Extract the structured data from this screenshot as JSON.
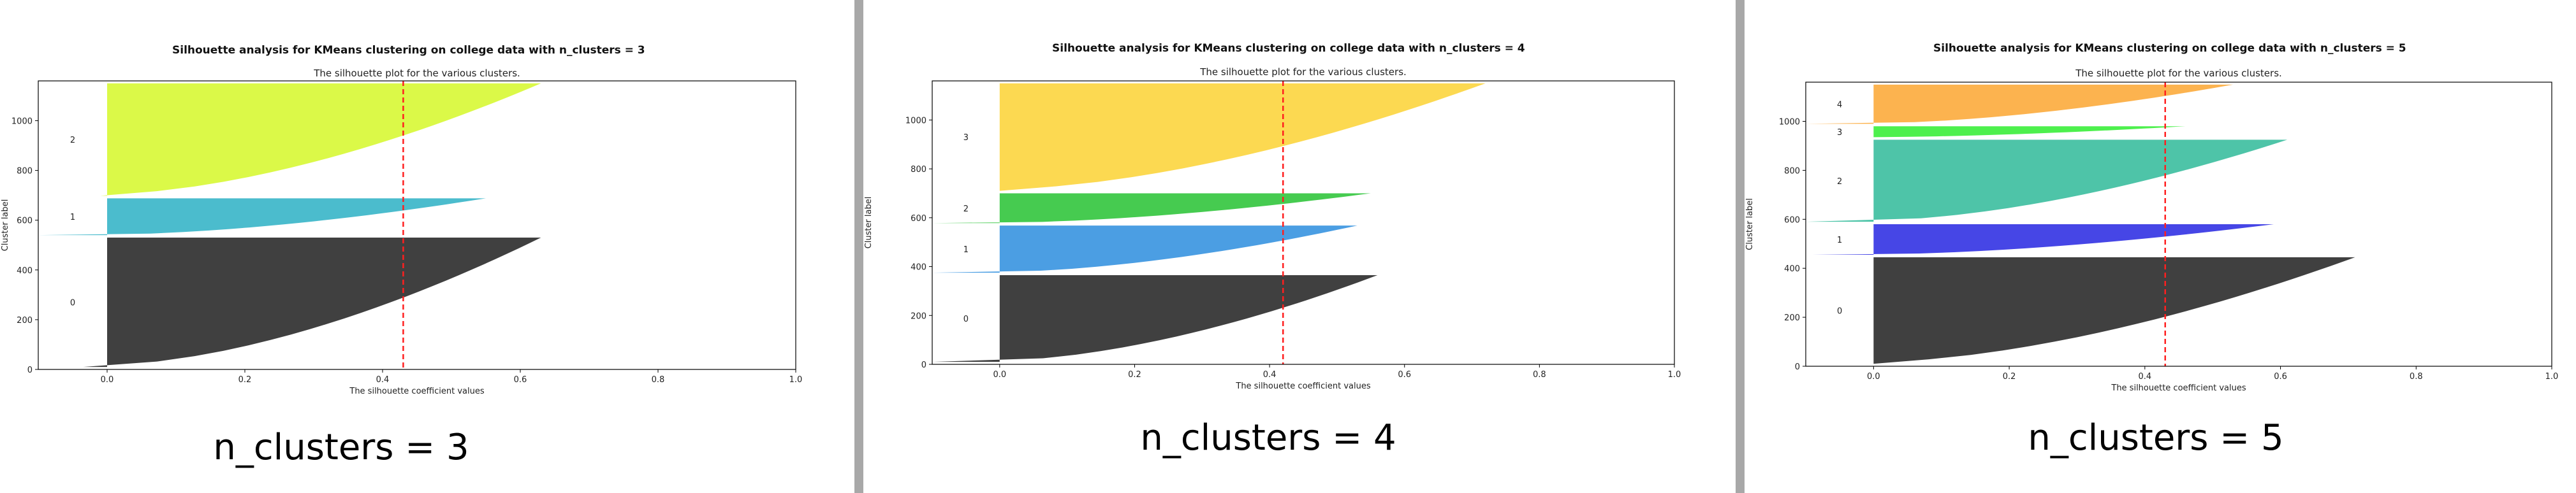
{
  "panels": [
    {
      "suptitle": "Silhouette analysis for KMeans clustering on college data with n_clusters = 3",
      "caption": "n_clusters = 3",
      "chart_data": {
        "type": "silhouette",
        "title": "The silhouette plot for the various clusters.",
        "xlabel": "The silhouette coefficient values",
        "ylabel": "Cluster label",
        "xlim": [
          -0.1,
          1.0
        ],
        "ylim": [
          0,
          1160
        ],
        "xticks": [
          "0.0",
          "0.2",
          "0.4",
          "0.6",
          "0.8",
          "1.0"
        ],
        "xtick_values": [
          0.0,
          0.2,
          0.4,
          0.6,
          0.8,
          1.0
        ],
        "yticks": [
          "0",
          "200",
          "400",
          "600",
          "800",
          "1000"
        ],
        "ytick_values": [
          0,
          200,
          400,
          600,
          800,
          1000
        ],
        "average_silhouette": 0.43,
        "clusters": [
          {
            "label": "0",
            "y_start": 10,
            "y_end": 530,
            "neg_min": -0.035,
            "max": 0.63,
            "color": "#404040"
          },
          {
            "label": "1",
            "y_start": 540,
            "y_end": 688,
            "neg_min": -0.1,
            "max": 0.55,
            "color": "#4bbccd"
          },
          {
            "label": "2",
            "y_start": 698,
            "y_end": 1150,
            "neg_min": -0.01,
            "max": 0.63,
            "color": "#dbf948"
          }
        ]
      }
    },
    {
      "suptitle": "Silhouette analysis for KMeans clustering on college data with n_clusters = 4",
      "caption": "n_clusters = 4",
      "chart_data": {
        "type": "silhouette",
        "title": "The silhouette plot for the various clusters.",
        "xlabel": "The silhouette coefficient values",
        "ylabel": "Cluster label",
        "xlim": [
          -0.1,
          1.0
        ],
        "ylim": [
          0,
          1160
        ],
        "xticks": [
          "0.0",
          "0.2",
          "0.4",
          "0.6",
          "0.8",
          "1.0"
        ],
        "xtick_values": [
          0.0,
          0.2,
          0.4,
          0.6,
          0.8,
          1.0
        ],
        "yticks": [
          "0",
          "200",
          "400",
          "600",
          "800",
          "1000"
        ],
        "ytick_values": [
          0,
          200,
          400,
          600,
          800,
          1000
        ],
        "average_silhouette": 0.42,
        "clusters": [
          {
            "label": "0",
            "y_start": 10,
            "y_end": 365,
            "neg_min": -0.1,
            "max": 0.56,
            "color": "#404040"
          },
          {
            "label": "1",
            "y_start": 375,
            "y_end": 568,
            "neg_min": -0.1,
            "max": 0.53,
            "color": "#4b9ee3"
          },
          {
            "label": "2",
            "y_start": 578,
            "y_end": 700,
            "neg_min": -0.1,
            "max": 0.55,
            "color": "#46cb50"
          },
          {
            "label": "3",
            "y_start": 710,
            "y_end": 1150,
            "neg_min": 0.0,
            "max": 0.72,
            "color": "#fcd951"
          }
        ]
      }
    },
    {
      "suptitle": "Silhouette analysis for KMeans clustering on college data with n_clusters = 5",
      "caption": "n_clusters = 5",
      "chart_data": {
        "type": "silhouette",
        "title": "The silhouette plot for the various clusters.",
        "xlabel": "The silhouette coefficient values",
        "ylabel": "Cluster label",
        "xlim": [
          -0.1,
          1.0
        ],
        "ylim": [
          0,
          1160
        ],
        "xticks": [
          "0.0",
          "0.2",
          "0.4",
          "0.6",
          "0.8",
          "1.0"
        ],
        "xtick_values": [
          0.0,
          0.2,
          0.4,
          0.6,
          0.8,
          1.0
        ],
        "yticks": [
          "0",
          "200",
          "400",
          "600",
          "800",
          "1000"
        ],
        "ytick_values": [
          0,
          200,
          400,
          600,
          800,
          1000
        ],
        "average_silhouette": 0.43,
        "clusters": [
          {
            "label": "0",
            "y_start": 10,
            "y_end": 445,
            "neg_min": 0.0,
            "max": 0.71,
            "color": "#404040"
          },
          {
            "label": "1",
            "y_start": 455,
            "y_end": 580,
            "neg_min": -0.09,
            "max": 0.59,
            "color": "#4646e6"
          },
          {
            "label": "2",
            "y_start": 590,
            "y_end": 925,
            "neg_min": -0.1,
            "max": 0.61,
            "color": "#4ec4a8"
          },
          {
            "label": "3",
            "y_start": 935,
            "y_end": 980,
            "neg_min": -0.01,
            "max": 0.46,
            "color": "#4df04d"
          },
          {
            "label": "4",
            "y_start": 990,
            "y_end": 1150,
            "neg_min": -0.1,
            "max": 0.53,
            "color": "#fcb34f"
          }
        ]
      }
    }
  ],
  "divider_color": "#a8a8a8"
}
